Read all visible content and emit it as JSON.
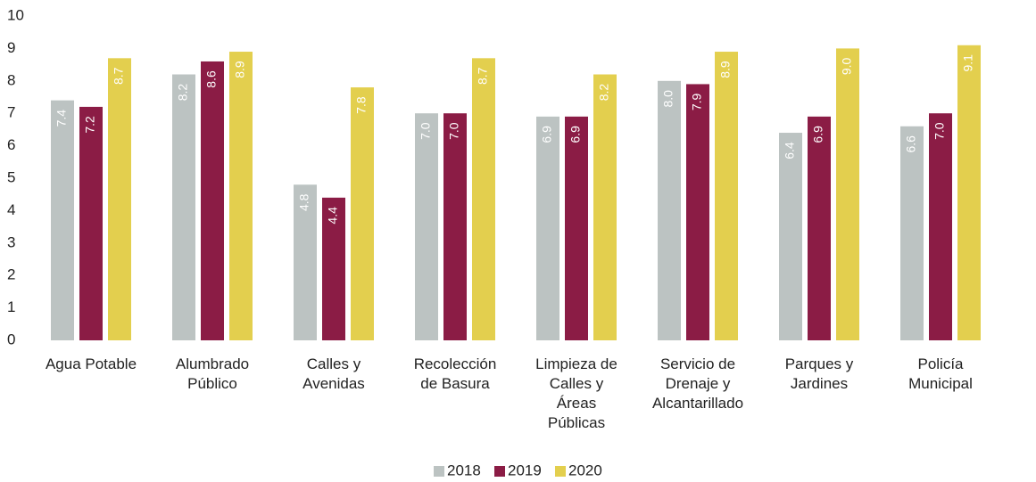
{
  "chart_data": {
    "type": "bar",
    "categories": [
      "Agua Potable",
      "Alumbrado\nPúblico",
      "Calles y\nAvenidas",
      "Recolección\nde Basura",
      "Limpieza de\nCalles y\nÁreas\nPúblicas",
      "Servicio de\nDrenaje y\nAlcantarillado",
      "Parques y\nJardines",
      "Policía\nMunicipal"
    ],
    "series": [
      {
        "name": "2018",
        "color": "#bcc3c2",
        "values": [
          7.4,
          8.2,
          4.8,
          7.0,
          6.9,
          8.0,
          6.4,
          6.6
        ],
        "value_labels": [
          "7.4",
          "8.2",
          "4.8",
          "7.0",
          "6.9",
          "8.0",
          "6.4",
          "6.6"
        ]
      },
      {
        "name": "2019",
        "color": "#8b1c45",
        "values": [
          7.2,
          8.6,
          4.4,
          7.0,
          6.9,
          7.9,
          6.9,
          7.0
        ],
        "value_labels": [
          "7.2",
          "8.6",
          "4.4",
          "7.0",
          "6.9",
          "7.9",
          "6.9",
          "7.0"
        ]
      },
      {
        "name": "2020",
        "color": "#e3cf4e",
        "values": [
          8.7,
          8.9,
          7.8,
          8.7,
          8.2,
          8.9,
          9.0,
          9.1
        ],
        "value_labels": [
          "8.7",
          "8.9",
          "7.8",
          "8.7",
          "8.2",
          "8.9",
          "9.0",
          "9.1"
        ]
      }
    ],
    "ylim": [
      0,
      10
    ],
    "yticks": [
      0,
      1,
      2,
      3,
      4,
      5,
      6,
      7,
      8,
      9,
      10
    ],
    "grid": false,
    "legend": "bottom"
  }
}
